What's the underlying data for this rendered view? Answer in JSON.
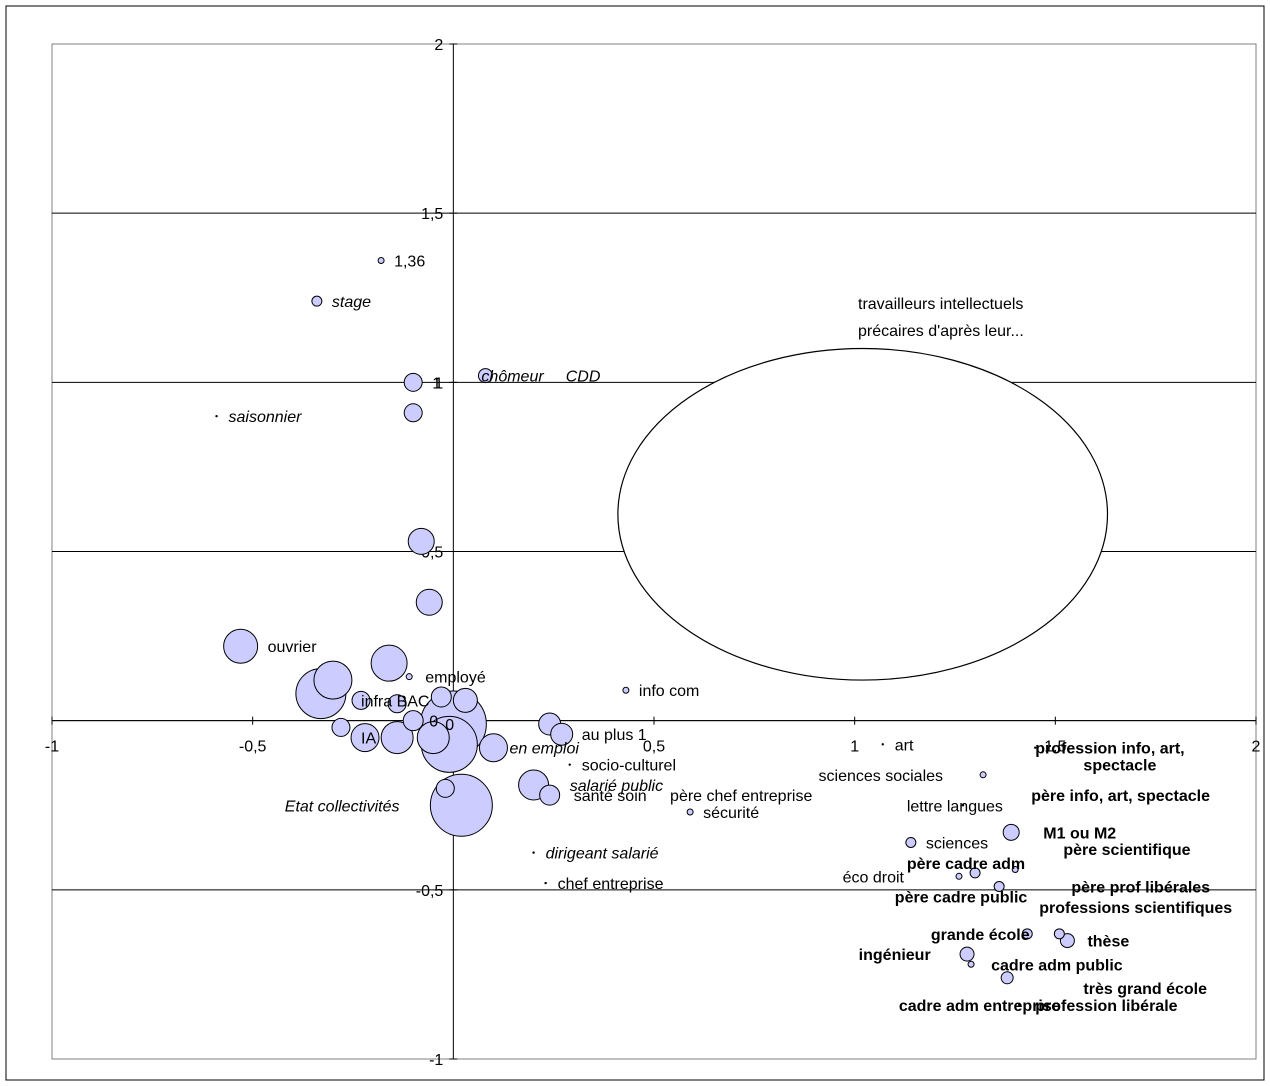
{
  "chart_data": {
    "type": "scatter",
    "xlim": [
      -1,
      2
    ],
    "ylim": [
      -1,
      2
    ],
    "x_ticks": [
      -1,
      -0.5,
      0,
      0.5,
      1,
      1.5,
      2
    ],
    "x_tick_labels": [
      "-1",
      "-0,5",
      "0",
      "0,5",
      "1",
      "1,5",
      "2"
    ],
    "y_ticks": [
      -1,
      -0.5,
      0,
      0.5,
      1,
      1.5,
      2
    ],
    "y_tick_labels": [
      "-1",
      "-0,5",
      "0",
      "0,5",
      "1",
      "1,5",
      "2"
    ],
    "grid": "horizontal",
    "bubble_color": "#ccccff",
    "annotation": {
      "lines": [
        "travailleurs intellectuels",
        "précaires d'après leur..."
      ],
      "ellipse": {
        "cx": 1.02,
        "cy": 0.61,
        "rx": 0.61,
        "ry": 0.49
      }
    },
    "points": [
      {
        "x": -0.18,
        "y": 1.36,
        "size": 3,
        "label": "1,36",
        "style": "normal"
      },
      {
        "x": -0.34,
        "y": 1.24,
        "size": 5,
        "label": "stage",
        "style": "italic"
      },
      {
        "x": -0.1,
        "y": 1.0,
        "size": 9,
        "label": "1",
        "style": "normal"
      },
      {
        "x": 0.08,
        "y": 1.02,
        "size": 7,
        "label": "chômeur",
        "style": "italic",
        "label_x": 0.07
      },
      {
        "x": 0.08,
        "y": 1.02,
        "size": 0,
        "label": "CDD",
        "style": "italic",
        "label_x": 0.28
      },
      {
        "x": -0.59,
        "y": 0.9,
        "size": 1,
        "label": "saisonnier",
        "style": "italic"
      },
      {
        "x": -0.1,
        "y": 0.91,
        "size": 9,
        "label": "",
        "style": "normal"
      },
      {
        "x": -0.08,
        "y": 0.53,
        "size": 13,
        "label": "",
        "style": "normal"
      },
      {
        "x": -0.06,
        "y": 0.35,
        "size": 13,
        "label": "",
        "style": "normal"
      },
      {
        "x": -0.53,
        "y": 0.22,
        "size": 17,
        "label": "ouvrier",
        "style": "normal"
      },
      {
        "x": -0.16,
        "y": 0.17,
        "size": 18,
        "label": "",
        "style": "normal"
      },
      {
        "x": -0.3,
        "y": 0.12,
        "size": 19,
        "label": "",
        "style": "normal"
      },
      {
        "x": -0.11,
        "y": 0.13,
        "size": 3,
        "label": "employé",
        "style": "normal",
        "label_x": -0.07
      },
      {
        "x": -0.33,
        "y": 0.08,
        "size": 25,
        "label": "",
        "style": "normal"
      },
      {
        "x": -0.23,
        "y": 0.06,
        "size": 9,
        "label": "infra BAC",
        "style": "normal",
        "label_x": -0.23
      },
      {
        "x": 0.03,
        "y": 0.06,
        "size": 12,
        "label": "",
        "style": "normal"
      },
      {
        "x": -0.03,
        "y": 0.07,
        "size": 10,
        "label": "",
        "style": "normal"
      },
      {
        "x": -0.1,
        "y": 0.0,
        "size": 10,
        "label": "0",
        "style": "normal",
        "label_x": -0.06
      },
      {
        "x": -0.14,
        "y": 0.05,
        "size": 9,
        "label": "",
        "style": "normal"
      },
      {
        "x": -0.28,
        "y": -0.02,
        "size": 9,
        "label": "",
        "style": "normal"
      },
      {
        "x": -0.22,
        "y": -0.05,
        "size": 14,
        "label": "IA",
        "style": "normal",
        "label_x": -0.23
      },
      {
        "x": -0.14,
        "y": -0.05,
        "size": 16,
        "label": "",
        "style": "normal"
      },
      {
        "x": -0.05,
        "y": -0.05,
        "size": 16,
        "label": "",
        "style": "normal"
      },
      {
        "x": 0.0,
        "y": -0.01,
        "size": 33,
        "label": "0",
        "style": "normal",
        "label_x": -0.02
      },
      {
        "x": -0.01,
        "y": -0.07,
        "size": 28,
        "label": "",
        "style": "normal"
      },
      {
        "x": 0.1,
        "y": -0.08,
        "size": 14,
        "label": "en emploi",
        "style": "italic",
        "label_x": 0.14
      },
      {
        "x": 0.24,
        "y": -0.01,
        "size": 11,
        "label": "",
        "style": "normal"
      },
      {
        "x": 0.27,
        "y": -0.04,
        "size": 11,
        "label": "au plus 1",
        "style": "normal",
        "label_x": 0.32
      },
      {
        "x": 0.29,
        "y": -0.13,
        "size": 1,
        "label": "socio-culturel",
        "style": "normal",
        "label_x": 0.32
      },
      {
        "x": 0.2,
        "y": -0.19,
        "size": 15,
        "label": "salarié public",
        "style": "italic",
        "label_x": 0.29
      },
      {
        "x": 0.24,
        "y": -0.22,
        "size": 10,
        "label": "santé soin",
        "style": "normal",
        "label_x": 0.3
      },
      {
        "x": 0.49,
        "y": -0.22,
        "size": 0,
        "label": "père chef entreprise",
        "style": "normal",
        "label_x": 0.54
      },
      {
        "x": 0.02,
        "y": -0.25,
        "size": 31,
        "label": "Etat collectivités",
        "style": "italic",
        "label_x": -0.42
      },
      {
        "x": -0.02,
        "y": -0.2,
        "size": 9,
        "label": "",
        "style": "normal"
      },
      {
        "x": 0.59,
        "y": -0.27,
        "size": 3,
        "label": "sécurité",
        "style": "normal"
      },
      {
        "x": 0.43,
        "y": 0.09,
        "size": 3,
        "label": "info com",
        "style": "normal"
      },
      {
        "x": 0.2,
        "y": -0.39,
        "size": 1,
        "label": "dirigeant salarié",
        "style": "italic"
      },
      {
        "x": 0.23,
        "y": -0.48,
        "size": 1,
        "label": "chef entreprise",
        "style": "normal"
      },
      {
        "x": 1.07,
        "y": -0.07,
        "size": 1,
        "label": "art",
        "style": "normal"
      },
      {
        "x": 1.32,
        "y": -0.16,
        "size": 3,
        "label": "sciences sociales",
        "style": "normal",
        "label_x": 0.91
      },
      {
        "x": 1.27,
        "y": -0.25,
        "size": 1,
        "label": "lettre langues",
        "style": "normal",
        "label_x": 1.13
      },
      {
        "x": 1.14,
        "y": -0.36,
        "size": 5,
        "label": "sciences",
        "style": "normal"
      },
      {
        "x": 1.26,
        "y": -0.46,
        "size": 3,
        "label": "éco droit",
        "style": "normal",
        "label_x": 0.97
      },
      {
        "x": 1.3,
        "y": -0.45,
        "size": 5,
        "label": "",
        "style": "normal"
      },
      {
        "x": 1.36,
        "y": -0.49,
        "size": 5,
        "label": "",
        "style": "normal"
      },
      {
        "x": 1.39,
        "y": -0.33,
        "size": 8,
        "label": "M1 ou M2",
        "style": "bold",
        "label_x": 1.47
      },
      {
        "x": 1.4,
        "y": -0.44,
        "size": 3,
        "label": "",
        "style": "normal"
      },
      {
        "x": 1.45,
        "y": -0.08,
        "size": 1,
        "label": "profession info, art,",
        "style": "bold",
        "label_x": 1.45
      },
      {
        "x": 1.45,
        "y": -0.08,
        "size": 0,
        "label": "spectacle",
        "style": "bold",
        "label_x": 1.57
      },
      {
        "x": 1.0,
        "y": -0.22,
        "size": 0,
        "label": "père info, art, spectacle",
        "style": "bold",
        "label_x": 1.44
      },
      {
        "x": 1.0,
        "y": -0.38,
        "size": 0,
        "label": "père scientifique",
        "style": "bold",
        "label_x": 1.52
      },
      {
        "x": 1.0,
        "y": -0.42,
        "size": 0,
        "label": "père cadre adm",
        "style": "bold",
        "label_x": 1.13
      },
      {
        "x": 1.0,
        "y": -0.49,
        "size": 0,
        "label": "père prof libérales",
        "style": "bold",
        "label_x": 1.54
      },
      {
        "x": 1.0,
        "y": -0.52,
        "size": 0,
        "label": "père cadre public",
        "style": "bold",
        "label_x": 1.1
      },
      {
        "x": 1.0,
        "y": -0.55,
        "size": 0,
        "label": "professions scientifiques",
        "style": "bold",
        "label_x": 1.46
      },
      {
        "x": 1.43,
        "y": -0.63,
        "size": 5,
        "label": "grande école",
        "style": "bold",
        "label_x": 1.19
      },
      {
        "x": 1.51,
        "y": -0.63,
        "size": 5,
        "label": "",
        "style": "normal"
      },
      {
        "x": 1.53,
        "y": -0.65,
        "size": 7,
        "label": "thèse",
        "style": "bold",
        "label_x": 1.58
      },
      {
        "x": 1.28,
        "y": -0.69,
        "size": 7,
        "label": "ingénieur",
        "style": "bold",
        "label_x": 1.01
      },
      {
        "x": 1.29,
        "y": -0.72,
        "size": 3,
        "label": "cadre adm public",
        "style": "bold",
        "label_x": 1.34
      },
      {
        "x": 1.38,
        "y": -0.76,
        "size": 6,
        "label": "",
        "style": "normal"
      },
      {
        "x": 1.53,
        "y": -0.79,
        "size": 0,
        "label": "très grand école",
        "style": "bold",
        "label_x": 1.57
      },
      {
        "x": 1.41,
        "y": -0.84,
        "size": 1,
        "label": "cadre adm entreprise",
        "style": "bold",
        "label_x": 1.11
      },
      {
        "x": 1.41,
        "y": -0.84,
        "size": 0,
        "label": "profession libérale",
        "style": "bold",
        "label_x": 1.45
      }
    ]
  }
}
